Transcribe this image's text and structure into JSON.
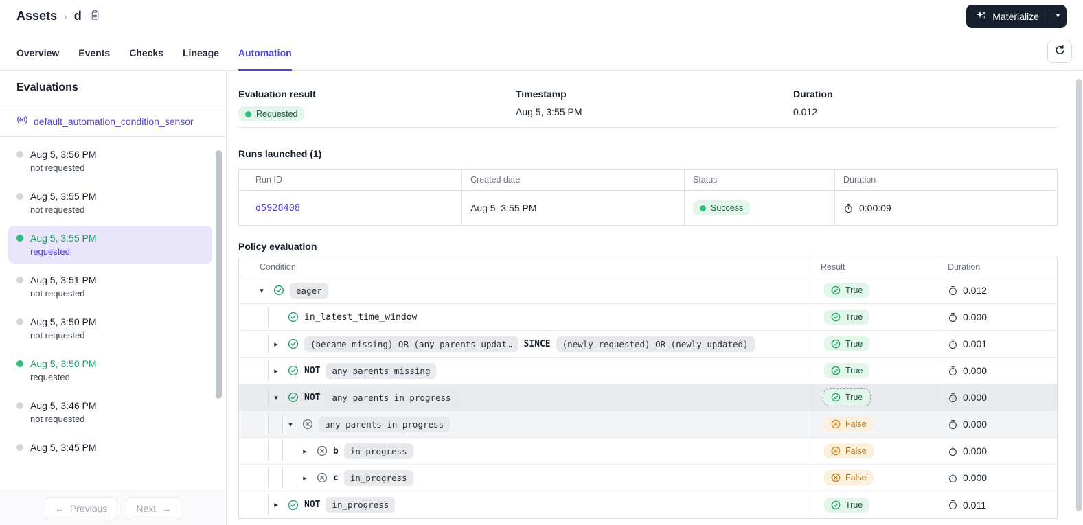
{
  "colors": {
    "accent": "#4F43DD",
    "green": "#23A26A",
    "green_badge_bg": "#E2F6EA",
    "orange": "#C8861C",
    "orange_badge_bg": "#FBF0DE",
    "chip_bg": "#E7E9EC",
    "selected_bg": "#E9E5FB",
    "dark_button_bg": "#16202D"
  },
  "header": {
    "breadcrumb_root": "Assets",
    "breadcrumb_current": "d",
    "materialize_label": "Materialize"
  },
  "tabs": [
    {
      "label": "Overview",
      "active": false
    },
    {
      "label": "Events",
      "active": false
    },
    {
      "label": "Checks",
      "active": false
    },
    {
      "label": "Lineage",
      "active": false
    },
    {
      "label": "Automation",
      "active": true
    }
  ],
  "sidebar": {
    "title": "Evaluations",
    "sensor_name": "default_automation_condition_sensor",
    "items": [
      {
        "time": "Aug 5, 3:56 PM",
        "status_label": "not requested",
        "status": "not_requested",
        "selected": false
      },
      {
        "time": "Aug 5, 3:55 PM",
        "status_label": "not requested",
        "status": "not_requested",
        "selected": false
      },
      {
        "time": "Aug 5, 3:55 PM",
        "status_label": "requested",
        "status": "requested",
        "selected": true
      },
      {
        "time": "Aug 5, 3:51 PM",
        "status_label": "not requested",
        "status": "not_requested",
        "selected": false
      },
      {
        "time": "Aug 5, 3:50 PM",
        "status_label": "not requested",
        "status": "not_requested",
        "selected": false
      },
      {
        "time": "Aug 5, 3:50 PM",
        "status_label": "requested",
        "status": "requested",
        "selected": false
      },
      {
        "time": "Aug 5, 3:46 PM",
        "status_label": "not requested",
        "status": "not_requested",
        "selected": false
      },
      {
        "time": "Aug 5, 3:45 PM",
        "status_label": "",
        "status": "not_requested",
        "selected": false
      }
    ],
    "pagination": {
      "previous_label": "Previous",
      "next_label": "Next"
    }
  },
  "summary": {
    "result_label": "Evaluation result",
    "result_value": "Requested",
    "timestamp_label": "Timestamp",
    "timestamp_value": "Aug 5, 3:55 PM",
    "duration_label": "Duration",
    "duration_value": "0.012"
  },
  "runs": {
    "title": "Runs launched (1)",
    "columns": [
      "Run ID",
      "Created date",
      "Status",
      "Duration"
    ],
    "rows": [
      {
        "run_id": "d5928408",
        "created": "Aug 5, 3:55 PM",
        "status": "Success",
        "duration": "0:00:09"
      }
    ]
  },
  "policy": {
    "title": "Policy evaluation",
    "columns": [
      "Condition",
      "Result",
      "Duration"
    ],
    "rows": [
      {
        "depth": 0,
        "caret": "down",
        "icon": "check",
        "segments": [
          {
            "t": "chip",
            "v": "eager"
          }
        ],
        "result": "True",
        "duration": "0.012",
        "highlight": null
      },
      {
        "depth": 1,
        "caret": null,
        "icon": "check",
        "segments": [
          {
            "t": "plain",
            "v": "in_latest_time_window"
          }
        ],
        "result": "True",
        "duration": "0.000",
        "highlight": null
      },
      {
        "depth": 1,
        "caret": "right",
        "icon": "check",
        "segments": [
          {
            "t": "chip",
            "v": "(became missing) OR (any parents updat…"
          },
          {
            "t": "bold",
            "v": "SINCE"
          },
          {
            "t": "chip",
            "v": "(newly_requested) OR (newly_updated)"
          }
        ],
        "result": "True",
        "duration": "0.001",
        "highlight": null
      },
      {
        "depth": 1,
        "caret": "right",
        "icon": "check",
        "segments": [
          {
            "t": "bold",
            "v": "NOT"
          },
          {
            "t": "chip",
            "v": "any parents missing"
          }
        ],
        "result": "True",
        "duration": "0.000",
        "highlight": null
      },
      {
        "depth": 1,
        "caret": "down",
        "icon": "check",
        "segments": [
          {
            "t": "bold",
            "v": "NOT"
          },
          {
            "t": "chip",
            "v": "any parents in progress"
          }
        ],
        "result": "True",
        "duration": "0.000",
        "highlight": "strong"
      },
      {
        "depth": 2,
        "caret": "down",
        "icon": "x",
        "segments": [
          {
            "t": "chip",
            "v": "any parents in progress"
          }
        ],
        "result": "False",
        "duration": "0.000",
        "highlight": "soft"
      },
      {
        "depth": 3,
        "caret": "right",
        "icon": "x",
        "segments": [
          {
            "t": "bold",
            "v": "b"
          },
          {
            "t": "chip",
            "v": "in_progress"
          }
        ],
        "result": "False",
        "duration": "0.000",
        "highlight": null
      },
      {
        "depth": 3,
        "caret": "right",
        "icon": "x",
        "segments": [
          {
            "t": "bold",
            "v": "c"
          },
          {
            "t": "chip",
            "v": "in_progress"
          }
        ],
        "result": "False",
        "duration": "0.000",
        "highlight": null
      },
      {
        "depth": 1,
        "caret": "right",
        "icon": "check",
        "segments": [
          {
            "t": "bold",
            "v": "NOT"
          },
          {
            "t": "chip",
            "v": "in_progress"
          }
        ],
        "result": "True",
        "duration": "0.011",
        "highlight": null
      }
    ]
  }
}
